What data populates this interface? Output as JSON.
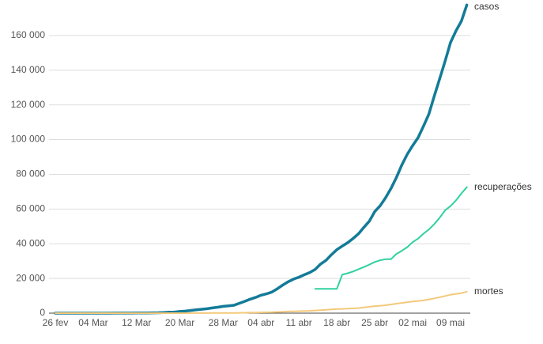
{
  "chart_data": {
    "type": "line",
    "categories": [
      "26 fev",
      null,
      null,
      null,
      null,
      null,
      null,
      "04 Mar",
      null,
      null,
      null,
      null,
      null,
      null,
      null,
      "12 Mar",
      null,
      null,
      null,
      null,
      null,
      null,
      null,
      "20 Mar",
      null,
      null,
      null,
      null,
      null,
      null,
      null,
      "28 Mar",
      null,
      null,
      null,
      null,
      null,
      null,
      "04 abr",
      null,
      null,
      null,
      null,
      null,
      null,
      "11 abr",
      null,
      null,
      null,
      null,
      null,
      null,
      "18 abr",
      null,
      null,
      null,
      null,
      null,
      null,
      "25 abr",
      null,
      null,
      null,
      null,
      null,
      null,
      "02 mai",
      null,
      null,
      null,
      null,
      null,
      null,
      "09 mai",
      null,
      null,
      null
    ],
    "series": [
      {
        "name": "casos",
        "color": "#137b98",
        "values": [
          1,
          1,
          1,
          2,
          2,
          2,
          2,
          3,
          8,
          13,
          19,
          25,
          25,
          34,
          52,
          77,
          151,
          151,
          200,
          234,
          346,
          529,
          640,
          970,
          1178,
          1546,
          1924,
          2247,
          2554,
          2985,
          3417,
          3904,
          4256,
          4579,
          5717,
          6836,
          8044,
          9056,
          10360,
          11130,
          12161,
          14034,
          16170,
          18092,
          19638,
          20727,
          22169,
          23430,
          25262,
          28320,
          30425,
          33682,
          36599,
          38654,
          40581,
          43079,
          45757,
          49492,
          52995,
          58509,
          61888,
          66501,
          71886,
          78162,
          85380,
          91589,
          96559,
          101147,
          107780,
          114715,
          125218,
          135106,
          145328,
          155939,
          162699,
          168331,
          177589
        ]
      },
      {
        "name": "recuperações",
        "color": "#2fd19f",
        "values": [
          null,
          null,
          null,
          null,
          null,
          null,
          null,
          null,
          null,
          null,
          null,
          null,
          null,
          null,
          null,
          null,
          null,
          null,
          null,
          null,
          null,
          null,
          null,
          null,
          null,
          null,
          null,
          null,
          null,
          null,
          null,
          null,
          null,
          null,
          null,
          null,
          null,
          null,
          null,
          null,
          null,
          null,
          null,
          null,
          null,
          null,
          null,
          null,
          14026,
          14026,
          14026,
          14026,
          14026,
          22130,
          22991,
          24000,
          25318,
          26573,
          28000,
          29500,
          30500,
          31142,
          31142,
          34132,
          35935,
          38039,
          40937,
          42991,
          45815,
          48221,
          51370,
          55000,
          59297,
          61685,
          65000,
          69000,
          72597
        ]
      },
      {
        "name": "mortes",
        "color": "#f3c97c",
        "values": [
          0,
          0,
          0,
          0,
          0,
          0,
          0,
          0,
          0,
          0,
          0,
          0,
          0,
          0,
          0,
          0,
          0,
          0,
          0,
          0,
          1,
          4,
          7,
          11,
          18,
          25,
          34,
          46,
          59,
          77,
          92,
          111,
          136,
          159,
          201,
          240,
          324,
          359,
          445,
          486,
          564,
          686,
          819,
          950,
          1057,
          1124,
          1223,
          1328,
          1532,
          1736,
          1924,
          2141,
          2354,
          2462,
          2587,
          2741,
          2906,
          3331,
          3704,
          4057,
          4271,
          4543,
          5017,
          5466,
          5901,
          6329,
          6750,
          7025,
          7321,
          7921,
          8536,
          9146,
          9897,
          10627,
          11123,
          11519,
          12400
        ]
      }
    ],
    "ylim": [
      0,
      180000
    ],
    "yticks": [
      0,
      {
        "value": 20000,
        "label": "20 000"
      },
      {
        "value": 40000,
        "label": "40 000"
      },
      {
        "value": 60000,
        "label": "60 000"
      },
      {
        "value": 80000,
        "label": "80 000"
      },
      {
        "value": 100000,
        "label": "100 000"
      },
      {
        "value": 120000,
        "label": "120 000"
      },
      {
        "value": 140000,
        "label": "140 000"
      },
      {
        "value": 160000,
        "label": "160 000"
      }
    ],
    "grid": true
  }
}
